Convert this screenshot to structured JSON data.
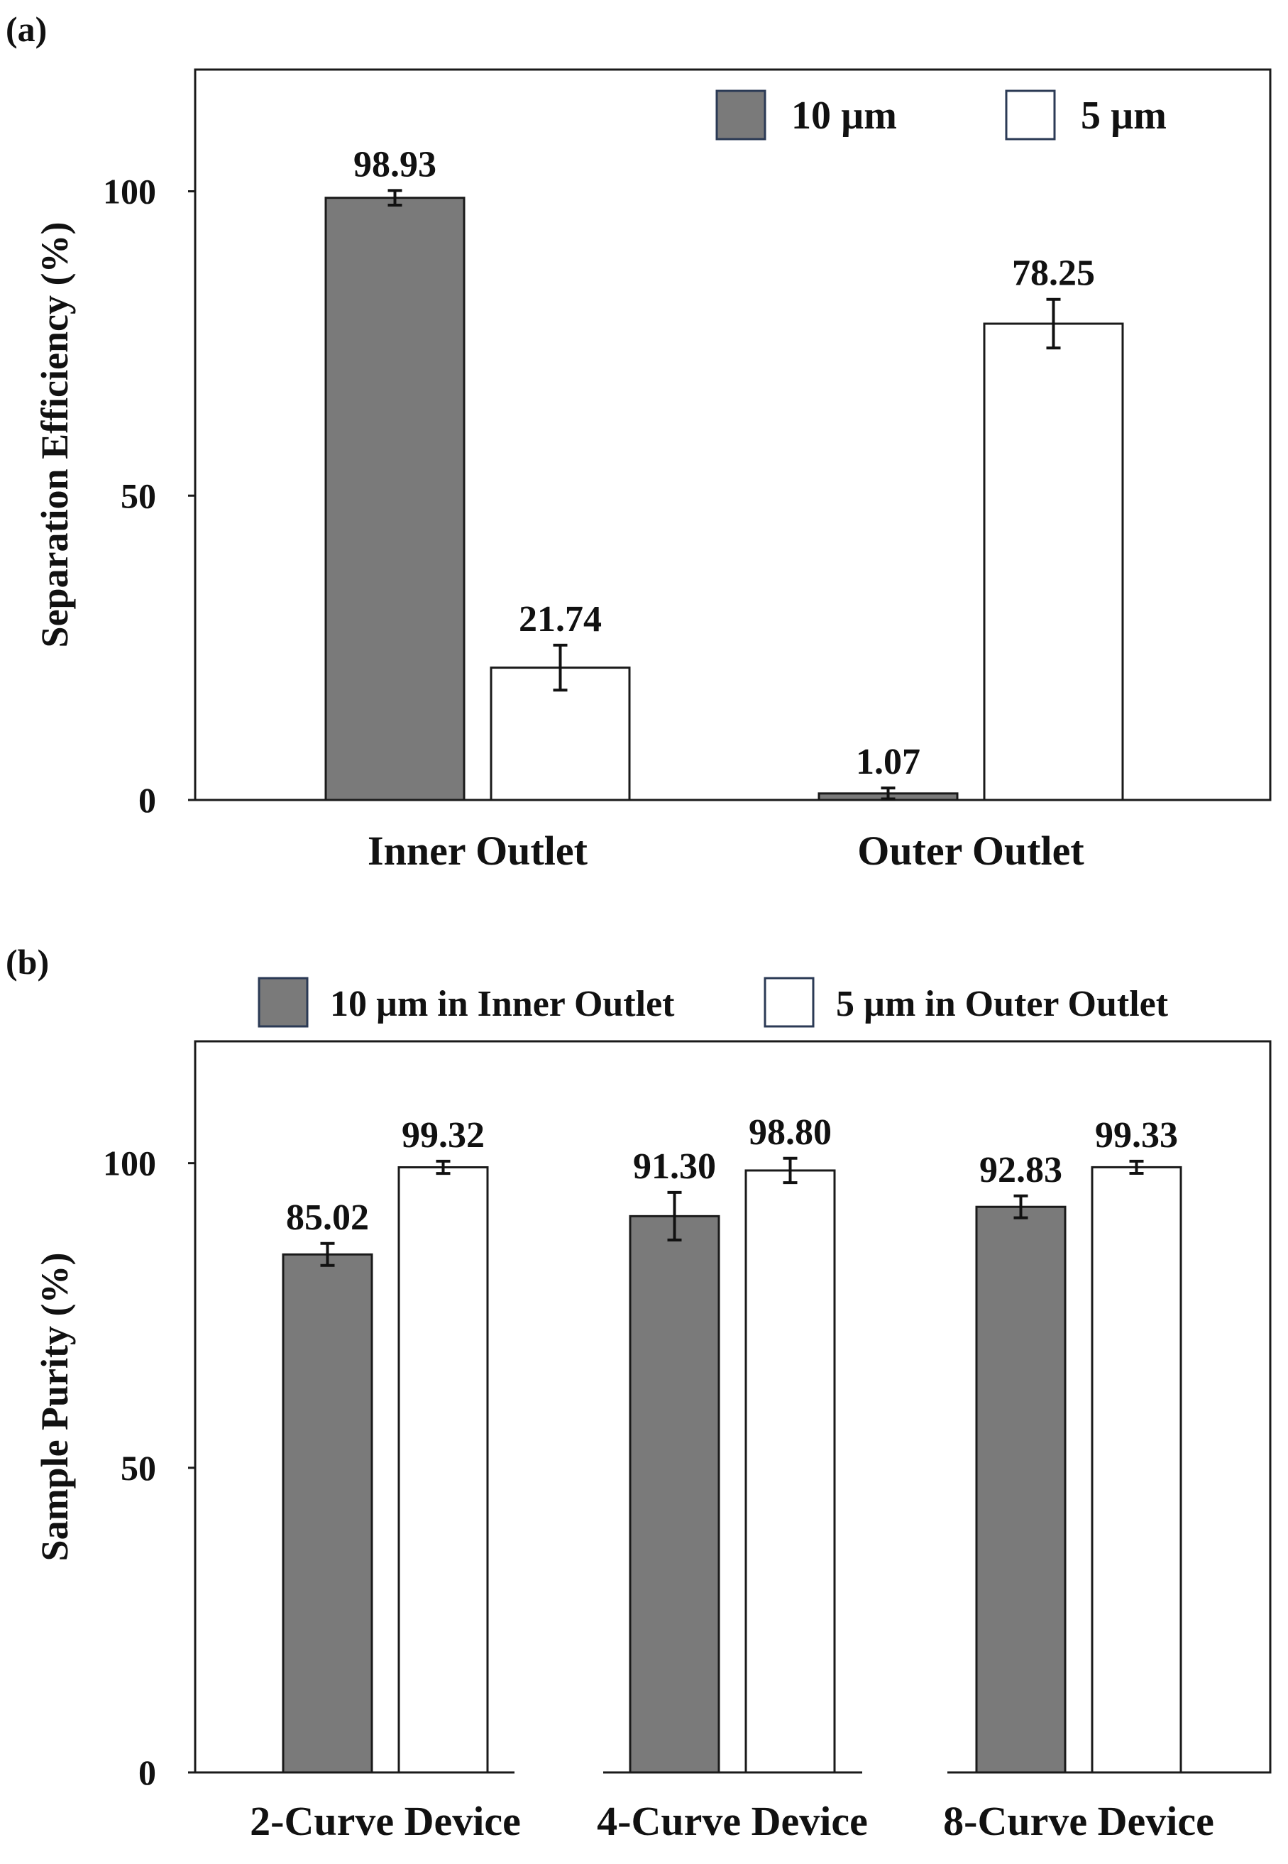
{
  "chart_data": [
    {
      "panel_label": "(a)",
      "type": "bar",
      "title": "",
      "xlabel": "",
      "ylabel": "Separation Efficiency (%)",
      "ylim": [
        0,
        120
      ],
      "yticks": [
        0,
        50,
        100
      ],
      "grid": false,
      "legend_position": "top-right",
      "categories": [
        "Inner Outlet",
        "Outer Outlet"
      ],
      "series": [
        {
          "name": "10 µm",
          "color": "#7a7a7a",
          "values": [
            98.93,
            1.07
          ],
          "errors": [
            1.2,
            0.9
          ],
          "labels": [
            "98.93",
            "1.07"
          ]
        },
        {
          "name": "5 µm",
          "color": "#ffffff",
          "values": [
            21.74,
            78.25
          ],
          "errors": [
            3.7,
            4.0
          ],
          "labels": [
            "21.74",
            "78.25"
          ]
        }
      ]
    },
    {
      "panel_label": "(b)",
      "type": "bar",
      "title": "",
      "xlabel": "",
      "ylabel": "Sample Purity (%)",
      "ylim": [
        0,
        120
      ],
      "yticks": [
        0,
        50,
        100
      ],
      "grid": false,
      "legend_position": "top",
      "categories": [
        "2-Curve Device",
        "4-Curve Device",
        "8-Curve Device"
      ],
      "series": [
        {
          "name": "10 µm in Inner Outlet",
          "color": "#7a7a7a",
          "values": [
            85.02,
            91.3,
            92.83
          ],
          "errors": [
            1.8,
            3.9,
            1.8
          ],
          "labels": [
            "85.02",
            "91.30",
            "92.83"
          ]
        },
        {
          "name": "5 µm in Outer Outlet",
          "color": "#ffffff",
          "values": [
            99.32,
            98.8,
            99.33
          ],
          "errors": [
            1.0,
            2.0,
            1.0
          ],
          "labels": [
            "99.32",
            "98.80",
            "99.33"
          ]
        }
      ]
    }
  ]
}
